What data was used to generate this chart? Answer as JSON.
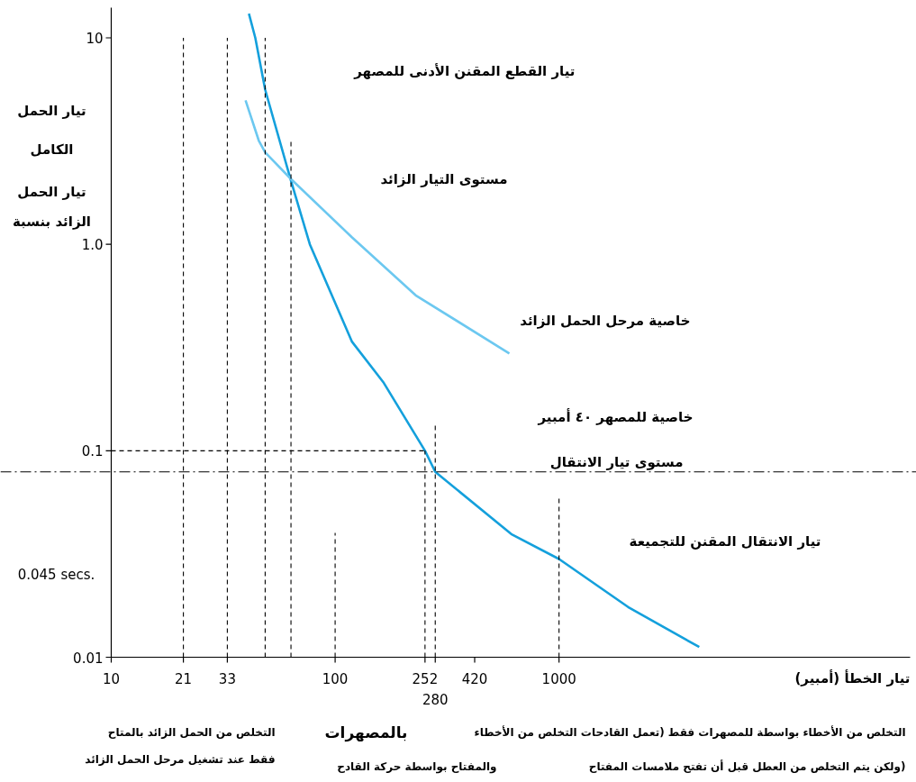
{
  "chart_data": {
    "type": "line",
    "log": "xy",
    "xlabel": "تيار الخطأ (أمبير)",
    "xlim": [
      10,
      37000
    ],
    "ylim": [
      0.01,
      14
    ],
    "xticks": [
      10,
      21,
      33,
      100,
      252,
      {
        "value": 280,
        "label": null
      },
      420,
      1000
    ],
    "yticks": [
      0.01,
      0.1,
      {
        "value": 1,
        "label": "1.0"
      },
      10
    ],
    "grid": false,
    "series": [
      {
        "color": "#14a0dc",
        "line_style": "solid",
        "x": [
          41.2,
          44,
          48.7,
          63.5,
          77.1,
          119,
          165,
          252,
          280,
          612,
          1000,
          2035,
          4230
        ],
        "values": [
          13.1,
          10,
          5.61,
          2.03,
          1.0,
          0.337,
          0.213,
          0.1,
          0.079,
          0.0395,
          0.0299,
          0.0175,
          0.0112
        ]
      },
      {
        "color": "#6cc8f0",
        "line_style": "solid",
        "x": [
          39.8,
          45.6,
          48.7,
          63.5,
          119,
          229,
          600
        ],
        "values": [
          4.98,
          3.18,
          2.79,
          2.07,
          1.08,
          0.566,
          0.296
        ]
      },
      {
        "color": "#000000",
        "line_style": "dashed",
        "x": [
          21,
          21
        ],
        "values": [
          0.01,
          10
        ]
      },
      {
        "color": "#000000",
        "line_style": "dashed",
        "x": [
          33,
          33
        ],
        "values": [
          0.01,
          10
        ]
      },
      {
        "color": "#000000",
        "line_style": "dashed",
        "x": [
          48.7,
          48.7
        ],
        "values": [
          0.01,
          10
        ]
      },
      {
        "color": "#000000",
        "line_style": "dashed",
        "x": [
          63.5,
          63.5
        ],
        "values": [
          0.01,
          3.18
        ]
      },
      {
        "color": "#000000",
        "line_style": "dashed",
        "x": [
          100,
          100
        ],
        "values": [
          0.01,
          0.04
        ]
      },
      {
        "color": "#000000",
        "line_style": "dashed",
        "x": [
          252,
          252
        ],
        "values": [
          0.01,
          0.1
        ]
      },
      {
        "color": "#000000",
        "line_style": "dashed",
        "x": [
          10,
          252
        ],
        "values": [
          0.1,
          0.1
        ]
      },
      {
        "color": "#000000",
        "line_style": "dashed",
        "x": [
          280,
          280
        ],
        "values": [
          0.01,
          0.134
        ]
      },
      {
        "color": "#000000",
        "line_style": "dashed",
        "x": [
          1000,
          1000
        ],
        "values": [
          0.01,
          0.06
        ]
      }
    ],
    "ref_lines": [
      {
        "axis": "y",
        "value": 0.079,
        "line_style": "dashdot",
        "color": "#000000"
      }
    ],
    "annotations": [
      "تيار القطع المقنن الأدنى للمصهر",
      "تيار الحمل\nالكامل",
      "تيار الحمل\nالزائد بنسبة",
      "مستوى التيار الزائد",
      "خاصية مرحل الحمل الزائد",
      "خاصية للمصهر ٤٠ أمبير",
      "مستوى تيار الانتقال",
      "تيار الانتقال المقنن للتجميعة",
      "0.045 secs.",
      "التخلص من الحمل الزائد بالمتاح\nفقط عند تشغيل مرحل الحمل الزائد",
      "التخلص من الأخطاء بواسطة للمصهرات فقط (تعمل القادحات التخلص من الأخطاء\nولكن يتم التخلص من العطل قبل أن تفتح ملامسات المفتاح)",
      "بالمصهرات\nوالمفتاح بواسطة حركة القادح",
      {
        "text": "280",
        "x": 280,
        "y": 0.01
      }
    ]
  }
}
